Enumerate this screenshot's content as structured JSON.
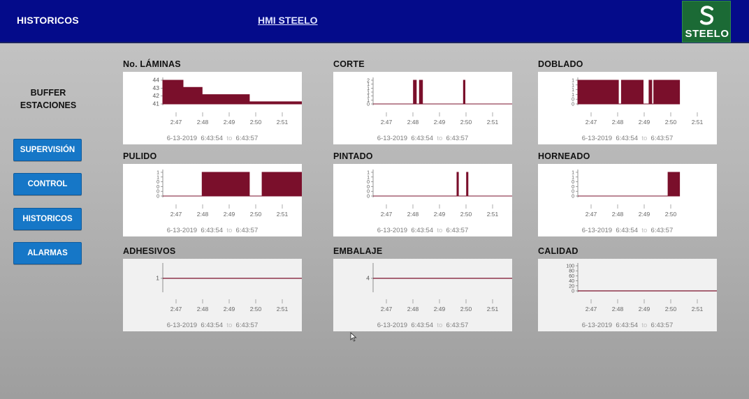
{
  "header": {
    "title": "HISTORICOS",
    "app_name": "HMI STEELO",
    "logo_text": "STEELO"
  },
  "colors": {
    "header_bg": "#040b8a",
    "button_bg": "#1677c7",
    "logo_bg": "#1b6a35",
    "series_fill": "#7a0f2b"
  },
  "sidebar": {
    "buffer_label_line1": "BUFFER",
    "buffer_label_line2": "ESTACIONES",
    "buttons": [
      {
        "label": "SUPERVISIÓN"
      },
      {
        "label": "CONTROL"
      },
      {
        "label": "HISTORICOS"
      },
      {
        "label": "ALARMAS"
      }
    ]
  },
  "time_range": {
    "date": "6-13-2019",
    "start": "6:43:54",
    "to": "to",
    "end": "6:43:57"
  },
  "chart_data": [
    {
      "type": "area",
      "title": "No. LÁMINAS",
      "x_ticks": [
        "2:47",
        "2:48",
        "2:49",
        "2:50",
        "2:51"
      ],
      "y_ticks": [
        "44",
        "43",
        "42",
        "41"
      ],
      "ylim": [
        40.7,
        44
      ],
      "x": [
        2.7667,
        2.7896,
        2.7896,
        2.8022,
        2.8022,
        2.8333,
        2.8333,
        2.8833
      ],
      "values": [
        44,
        44,
        43,
        43,
        42,
        42,
        41,
        41
      ]
    },
    {
      "type": "area",
      "title": "CORTE",
      "x_ticks": [
        "2:47",
        "2:48",
        "2:49",
        "2:50",
        "2:51"
      ],
      "y_ticks": [
        "2",
        "1",
        "1",
        "1",
        "1",
        "1",
        "0"
      ],
      "ylim": [
        0,
        2
      ],
      "x": [
        2.7667,
        2.8028,
        2.8028,
        2.8047,
        2.8047,
        2.8068,
        2.8068,
        2.8088,
        2.8088,
        2.8358,
        2.8358,
        2.8368,
        2.8368,
        2.84,
        2.84,
        2.8833
      ],
      "values": [
        0,
        0,
        2,
        2,
        0,
        0,
        2,
        2,
        0,
        0,
        2,
        2,
        0,
        0,
        0,
        0
      ]
    },
    {
      "type": "area",
      "title": "DOBLADO",
      "x_ticks": [
        "2:47",
        "2:48",
        "2:49",
        "2:50",
        "2:51"
      ],
      "y_ticks": [
        "1",
        "1",
        "1",
        "1",
        "0",
        "0"
      ],
      "ylim": [
        0,
        1
      ],
      "x": [
        2.7667,
        2.803,
        2.803,
        2.805,
        2.805,
        2.8193,
        2.8193,
        2.8232,
        2.8232,
        2.825,
        2.825,
        2.8263,
        2.8263,
        2.8433
      ],
      "values": [
        1,
        1,
        0,
        0,
        1,
        1,
        0,
        0,
        1,
        1,
        0,
        0,
        1,
        1
      ]
    },
    {
      "type": "area",
      "title": "PULIDO",
      "x_ticks": [
        "2:47",
        "2:48",
        "2:49",
        "2:50",
        "2:51"
      ],
      "y_ticks": [
        "1",
        "1",
        "0",
        "0",
        "0",
        "0"
      ],
      "ylim": [
        0,
        1
      ],
      "x": [
        2.7667,
        2.8022,
        2.8022,
        2.8333,
        2.8333,
        2.8417,
        2.8417,
        2.8683
      ],
      "values": [
        0,
        0,
        1,
        1,
        0,
        0,
        1,
        1
      ]
    },
    {
      "type": "area",
      "title": "PINTADO",
      "x_ticks": [
        "2:47",
        "2:48",
        "2:49",
        "2:50",
        "2:51"
      ],
      "y_ticks": [
        "1",
        "1",
        "0",
        "0",
        "0",
        "0"
      ],
      "ylim": [
        0,
        1
      ],
      "x": [
        2.7667,
        2.8315,
        2.8315,
        2.8325,
        2.8325,
        2.8378,
        2.8378,
        2.8388,
        2.8388,
        2.8683
      ],
      "values": [
        0,
        0,
        1,
        1,
        0,
        0,
        1,
        1,
        0,
        0
      ]
    },
    {
      "type": "area",
      "title": "HORNEADO",
      "x_ticks": [
        "2:47",
        "2:48",
        "2:49",
        "2:50"
      ],
      "y_ticks": [
        "1",
        "1",
        "0",
        "0",
        "0",
        "0"
      ],
      "ylim": [
        0,
        1
      ],
      "x": [
        2.7667,
        2.8357,
        2.8357,
        2.8433
      ],
      "values": [
        0,
        0,
        1,
        1
      ]
    },
    {
      "type": "line",
      "title": "ADHESIVOS",
      "x_ticks": [
        "2:47",
        "2:48",
        "2:49",
        "2:50",
        "2:51"
      ],
      "y_ticks": [
        "1"
      ],
      "ylim": [
        0,
        2
      ],
      "x": [
        2.7667,
        2.8833
      ],
      "values": [
        1,
        1
      ]
    },
    {
      "type": "line",
      "title": "EMBALAJE",
      "x_ticks": [
        "2:47",
        "2:48",
        "2:49",
        "2:50",
        "2:51"
      ],
      "y_ticks": [
        "4"
      ],
      "ylim": [
        0,
        8
      ],
      "x": [
        2.7667,
        2.8833
      ],
      "values": [
        4,
        4
      ]
    },
    {
      "type": "line",
      "title": "CALIDAD",
      "x_ticks": [
        "2:47",
        "2:48",
        "2:49",
        "2:50",
        "2:51"
      ],
      "y_ticks": [
        "100",
        "80",
        "60",
        "40",
        "20",
        "0"
      ],
      "ylim": [
        0,
        100
      ],
      "x": [
        2.7667,
        2.8833
      ],
      "values": [
        0,
        0
      ]
    }
  ]
}
